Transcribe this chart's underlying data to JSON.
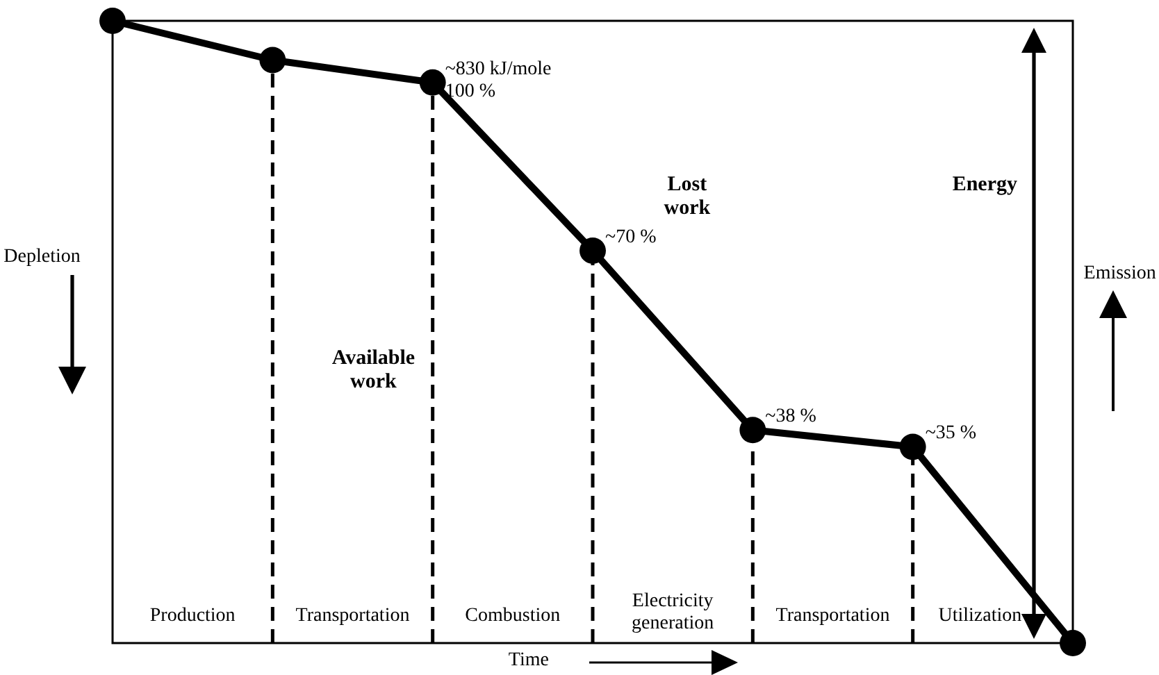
{
  "chart_data": {
    "type": "line",
    "xlabel": "Time",
    "categories": [
      null,
      null,
      null,
      null,
      null,
      null,
      null
    ],
    "ylim": [
      0,
      111
    ],
    "series": [
      {
        "color": "#000000",
        "marker": "circle",
        "line_style": "solid",
        "values": [
          111,
          104,
          100,
          70,
          38,
          35,
          0
        ],
        "value_labels": [
          null,
          null,
          "~830 kJ/mole\n100 %",
          "~70 %",
          "~38 %",
          "~35 %",
          null
        ]
      }
    ],
    "annotations": [
      "Production",
      "Transportation",
      "Combustion",
      "Electricity\ngeneration",
      "Transportation",
      "Utilization",
      "Available\nwork",
      "Lost\nwork",
      "Energy",
      "Depletion",
      "Emission"
    ]
  }
}
